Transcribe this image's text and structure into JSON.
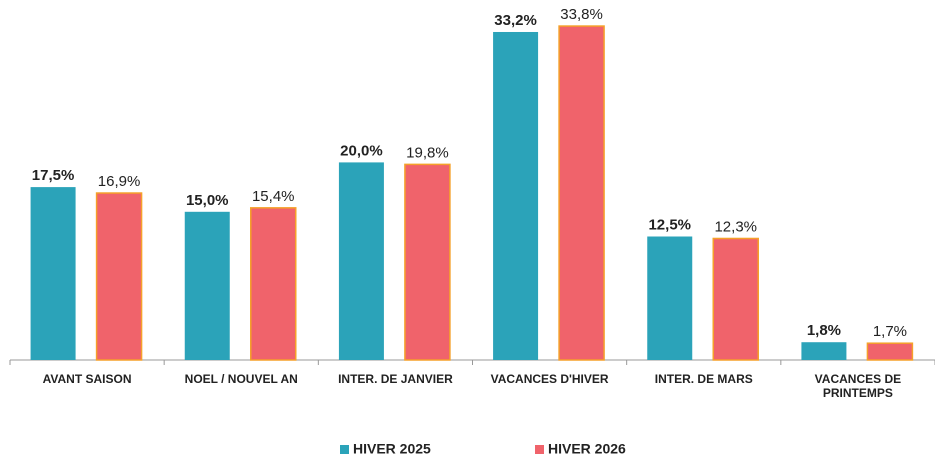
{
  "chart_data": {
    "type": "bar",
    "categories": [
      "AVANT SAISON",
      "NOEL / NOUVEL AN",
      "INTER. DE JANVIER",
      "VACANCES D'HIVER",
      "INTER. DE MARS",
      "VACANCES DE PRINTEMPS"
    ],
    "series": [
      {
        "name": "HIVER 2025",
        "color": "#2ba3b9",
        "values": [
          17.5,
          15.0,
          20.0,
          33.2,
          12.5,
          1.8
        ],
        "value_labels": [
          "17,5%",
          "15,0%",
          "20,0%",
          "33,2%",
          "12,5%",
          "1,8%"
        ]
      },
      {
        "name": "HIVER 2026",
        "color": "#f0636b",
        "values": [
          16.9,
          15.4,
          19.8,
          33.8,
          12.3,
          1.7
        ],
        "value_labels": [
          "16,9%",
          "15,4%",
          "19,8%",
          "33,8%",
          "12,3%",
          "1,7%"
        ]
      }
    ],
    "legend": "bottom"
  }
}
